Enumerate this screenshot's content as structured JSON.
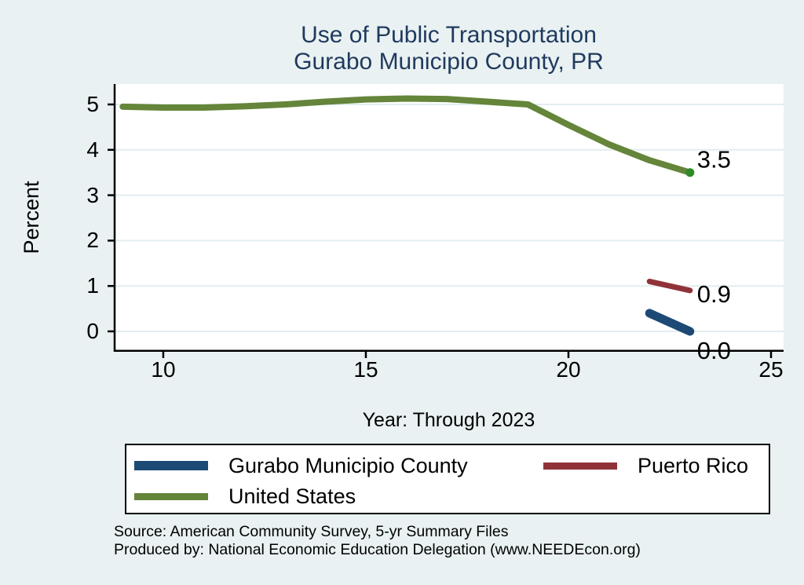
{
  "background": "#e9f1f2",
  "chart_data": {
    "type": "line",
    "title_line1": "Use of Public Transportation",
    "title_line2": "Gurabo Municipio County, PR",
    "xlabel": "Year: Through 2023",
    "ylabel": "Percent",
    "x_ticks": [
      10,
      15,
      20,
      25
    ],
    "y_ticks": [
      0,
      1,
      2,
      3,
      4,
      5
    ],
    "xlim": [
      8.78,
      25.31
    ],
    "ylim": [
      -0.45,
      5.45
    ],
    "grid": "horizontal-only",
    "gridline_color": "#e2edf0",
    "plot_background": "#ffffff",
    "legend_position": "bottom",
    "series": [
      {
        "name": "Gurabo Municipio County",
        "color": "#1c4a74",
        "line_width": 11,
        "x": [
          22,
          23
        ],
        "values": [
          0.4,
          0.0
        ],
        "end_label": "0.0",
        "end_dot": false
      },
      {
        "name": "Puerto Rico",
        "color": "#903339",
        "line_width": 7,
        "x": [
          22,
          23
        ],
        "values": [
          1.1,
          0.9
        ],
        "end_label": "0.9",
        "end_dot": false
      },
      {
        "name": "United States",
        "color": "#64853a",
        "line_width": 8,
        "x": [
          9,
          10,
          11,
          12,
          13,
          14,
          15,
          16,
          17,
          18,
          19,
          20,
          21,
          22,
          23
        ],
        "values": [
          4.95,
          4.93,
          4.93,
          4.96,
          5.0,
          5.06,
          5.11,
          5.13,
          5.12,
          5.06,
          5.0,
          4.55,
          4.12,
          3.77,
          3.5
        ],
        "end_label": "3.5",
        "end_dot": true,
        "end_dot_color": "#2e8b25"
      }
    ]
  },
  "footer": {
    "source": "Source: American Community Survey, 5-yr Summary Files",
    "produced_by": "Produced by: National Economic Education Delegation (www.NEEDEcon.org)"
  }
}
